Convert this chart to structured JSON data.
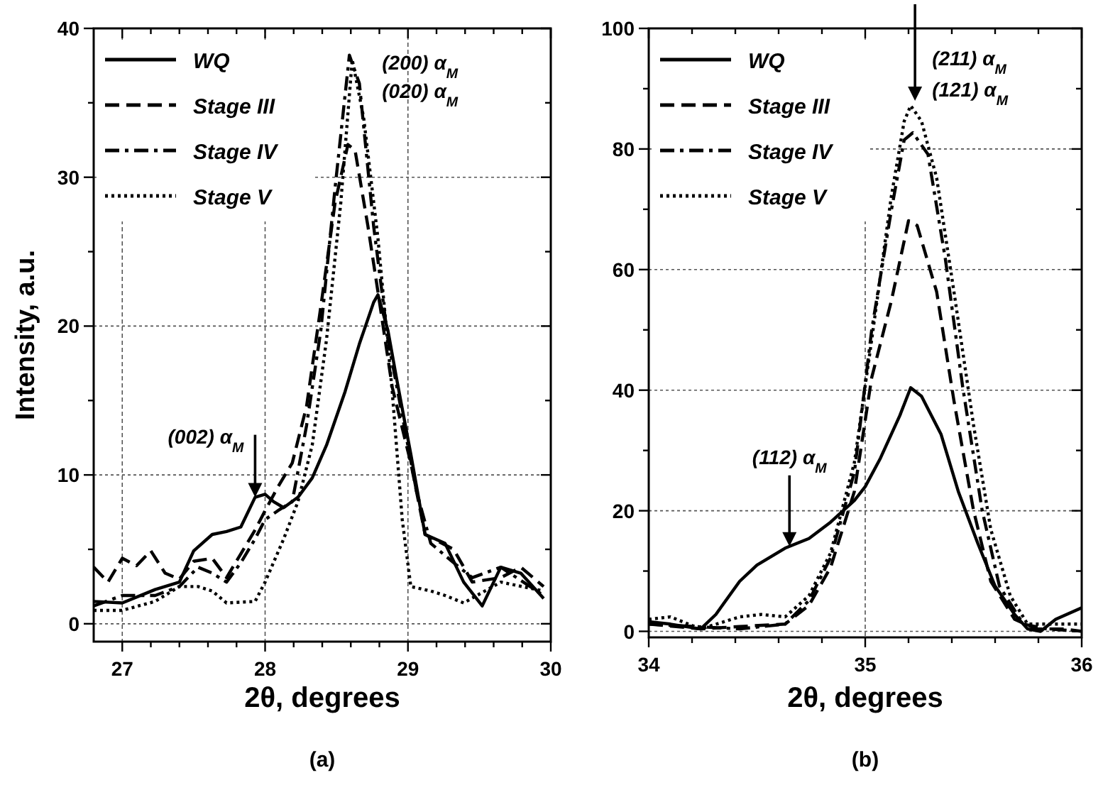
{
  "chart_data": [
    {
      "type": "line",
      "title": "(a)",
      "xlabel": "2θ, degrees",
      "ylabel": "Intensity, a.u.",
      "xlim": [
        26.8,
        30
      ],
      "ylim": [
        -1.2,
        40
      ],
      "xticks": [
        27,
        {
          "value": 27.2,
          "label": null
        },
        {
          "value": 27.4,
          "label": null
        },
        {
          "value": 27.6,
          "label": null
        },
        {
          "value": 27.8,
          "label": null
        },
        28,
        {
          "value": 28.2,
          "label": null
        },
        {
          "value": 28.4,
          "label": null
        },
        {
          "value": 28.6,
          "label": null
        },
        {
          "value": 28.8,
          "label": null
        },
        29,
        {
          "value": 29.2,
          "label": null
        },
        {
          "value": 29.4,
          "label": null
        },
        {
          "value": 29.6,
          "label": null
        },
        {
          "value": 29.8,
          "label": null
        },
        30
      ],
      "yticks": [
        0,
        {
          "value": 5,
          "label": null
        },
        10,
        {
          "value": 15,
          "label": null
        },
        20,
        {
          "value": 25,
          "label": null
        },
        30,
        {
          "value": 35,
          "label": null
        },
        40
      ],
      "grid": true,
      "legend": "top left",
      "series": [
        {
          "name": "WQ",
          "color": "#000000",
          "line_style": "solid",
          "x": [
            26.8,
            27.0,
            27.23,
            27.4,
            27.5,
            27.63,
            27.73,
            27.83,
            27.93,
            28.0,
            28.06,
            28.13,
            28.23,
            28.33,
            28.43,
            28.56,
            28.66,
            28.76,
            28.79,
            28.86,
            28.92,
            29.02,
            29.12,
            29.26,
            29.39,
            29.52,
            29.65,
            29.79,
            29.95
          ],
          "values": [
            1.5,
            1.4,
            2.3,
            2.8,
            4.9,
            6,
            6.2,
            6.5,
            8.5,
            8.7,
            8.2,
            7.8,
            8.5,
            9.8,
            12,
            15.6,
            18.8,
            21.6,
            22.1,
            19.7,
            16.5,
            11.4,
            6,
            5.4,
            2.8,
            1.2,
            3.8,
            3.4,
            1.7
          ]
        },
        {
          "name": "Stage III",
          "color": "#000000",
          "line_style": "dashed",
          "x": [
            26.8,
            26.9,
            27.0,
            27.1,
            27.2,
            27.3,
            27.4,
            27.5,
            27.63,
            27.73,
            27.83,
            27.93,
            28.0,
            28.09,
            28.19,
            28.29,
            28.39,
            28.49,
            28.58,
            28.63,
            28.72,
            28.79,
            28.89,
            29.02,
            29.12,
            29.32,
            29.45,
            29.65,
            29.79,
            29.95
          ],
          "values": [
            3.8,
            2.8,
            4.4,
            3.9,
            4.9,
            3.4,
            3,
            4.2,
            4.4,
            3.1,
            4.7,
            6.3,
            7.6,
            9.2,
            10.8,
            14.6,
            21.3,
            28.3,
            32.2,
            31.8,
            26.7,
            22.3,
            15.9,
            10.8,
            6,
            5,
            2.8,
            3.1,
            3.8,
            2.5
          ]
        },
        {
          "name": "Stage IV",
          "color": "#000000",
          "line_style": "dashdot",
          "x": [
            26.8,
            27.0,
            27.23,
            27.4,
            27.53,
            27.63,
            27.73,
            27.83,
            27.93,
            28.0,
            28.09,
            28.19,
            28.29,
            28.39,
            28.49,
            28.59,
            28.66,
            28.76,
            28.86,
            28.96,
            29.06,
            29.16,
            29.32,
            29.45,
            29.65,
            29.95
          ],
          "values": [
            1.2,
            1.9,
            1.9,
            2.5,
            3.8,
            3.4,
            2.8,
            4.1,
            5.7,
            7,
            7.6,
            8.2,
            13.3,
            19.7,
            29.3,
            38.2,
            36.3,
            26.7,
            19.1,
            14,
            8.9,
            5.4,
            4.1,
            3.1,
            3.8,
            1.9
          ]
        },
        {
          "name": "Stage V",
          "color": "#000000",
          "line_style": "dotted",
          "x": [
            26.8,
            27.0,
            27.23,
            27.4,
            27.53,
            27.63,
            27.73,
            27.93,
            28.0,
            28.13,
            28.23,
            28.33,
            28.43,
            28.53,
            28.61,
            28.69,
            28.79,
            28.89,
            28.96,
            29.02,
            29.16,
            29.26,
            29.39,
            29.65,
            29.95
          ],
          "values": [
            0.9,
            0.9,
            1.5,
            2.5,
            2.5,
            2.2,
            1.4,
            1.5,
            2.8,
            5.7,
            8.2,
            12,
            19.1,
            28.3,
            37.9,
            34,
            25.9,
            15.6,
            7,
            2.5,
            2.2,
            1.9,
            1.4,
            2.8,
            2.2
          ]
        }
      ],
      "annotations": [
        {
          "text": "(002) α$_{M}$",
          "x": 27.93,
          "y": 8.5
        },
        {
          "text": "(200) α$_{M}$",
          "x": 28.6,
          "y": 38
        },
        {
          "text": "(020) α$_{M}$",
          "x": 28.6,
          "y": 38
        }
      ]
    },
    {
      "type": "line",
      "title": "(b)",
      "xlabel": "2θ, degrees",
      "xlim": [
        34,
        36
      ],
      "ylim": [
        -1,
        100
      ],
      "xticks": [
        34,
        {
          "value": 34.2,
          "label": null
        },
        {
          "value": 34.4,
          "label": null
        },
        {
          "value": 34.6,
          "label": null
        },
        {
          "value": 34.8,
          "label": null
        },
        35,
        {
          "value": 35.2,
          "label": null
        },
        {
          "value": 35.4,
          "label": null
        },
        {
          "value": 35.6,
          "label": null
        },
        {
          "value": 35.8,
          "label": null
        },
        36
      ],
      "yticks": [
        0,
        {
          "value": 10,
          "label": null
        },
        20,
        {
          "value": 30,
          "label": null
        },
        40,
        {
          "value": 50,
          "label": null
        },
        60,
        {
          "value": 70,
          "label": null
        },
        80,
        {
          "value": 90,
          "label": null
        },
        100
      ],
      "grid": true,
      "legend": "top left",
      "series": [
        {
          "name": "WQ",
          "color": "#000000",
          "line_style": "solid",
          "x": [
            34.0,
            34.1,
            34.24,
            34.31,
            34.42,
            34.5,
            34.63,
            34.74,
            34.84,
            34.95,
            35.0,
            35.07,
            35.16,
            35.21,
            35.26,
            35.35,
            35.43,
            35.52,
            35.6,
            35.69,
            35.75,
            35.81,
            35.88,
            36.0
          ],
          "values": [
            1.6,
            1.2,
            0.4,
            2.8,
            8.3,
            11,
            13.8,
            15.4,
            18.1,
            21.7,
            24,
            28.7,
            35.8,
            40.4,
            39,
            32.7,
            23.2,
            14.6,
            7.5,
            2.8,
            0.4,
            0,
            2,
            3.9
          ]
        },
        {
          "name": "Stage III",
          "color": "#000000",
          "line_style": "dashed",
          "x": [
            34.0,
            34.24,
            34.42,
            34.63,
            34.74,
            34.84,
            34.95,
            35.03,
            35.12,
            35.2,
            35.24,
            35.33,
            35.41,
            35.5,
            35.58,
            35.69,
            35.79,
            35.92,
            36.0
          ],
          "values": [
            1.2,
            0.4,
            0.8,
            1.2,
            4.3,
            10.6,
            23.2,
            42.1,
            54.7,
            68.1,
            67.3,
            56.3,
            38.2,
            20.1,
            8.3,
            2,
            0.4,
            0.4,
            0
          ]
        },
        {
          "name": "Stage IV",
          "color": "#000000",
          "line_style": "dashdot",
          "x": [
            34.0,
            34.42,
            34.63,
            34.74,
            34.84,
            34.95,
            35.03,
            35.12,
            35.18,
            35.22,
            35.29,
            35.37,
            35.45,
            35.54,
            35.62,
            35.73,
            35.84,
            36.0
          ],
          "values": [
            1.2,
            0.4,
            1.2,
            5.1,
            12.2,
            26.4,
            50,
            69.7,
            81.5,
            82.7,
            79.1,
            61.8,
            40.6,
            20.1,
            7.5,
            1.2,
            0.4,
            0
          ]
        },
        {
          "name": "Stage V",
          "color": "#000000",
          "line_style": "dotted",
          "x": [
            34.0,
            34.1,
            34.24,
            34.42,
            34.52,
            34.63,
            34.74,
            34.84,
            34.95,
            35.03,
            35.12,
            35.18,
            35.21,
            35.26,
            35.33,
            35.41,
            35.5,
            35.58,
            35.67,
            35.75,
            35.88,
            36.0
          ],
          "values": [
            2,
            2.4,
            0.4,
            2.4,
            2.8,
            2.4,
            5.9,
            13,
            28,
            48.4,
            72,
            84.6,
            87.2,
            84.6,
            75.2,
            56.3,
            34.3,
            16.9,
            5.9,
            1.2,
            1.2,
            1.2
          ]
        }
      ],
      "annotations": [
        {
          "text": "(211) α$_{M}$",
          "x": 35.23,
          "y": 88
        },
        {
          "text": "(121) α$_{M}$",
          "x": 35.23,
          "y": 88
        },
        {
          "text": "(112) α$_{M}$",
          "x": 34.65,
          "y": 14.1
        }
      ]
    }
  ]
}
